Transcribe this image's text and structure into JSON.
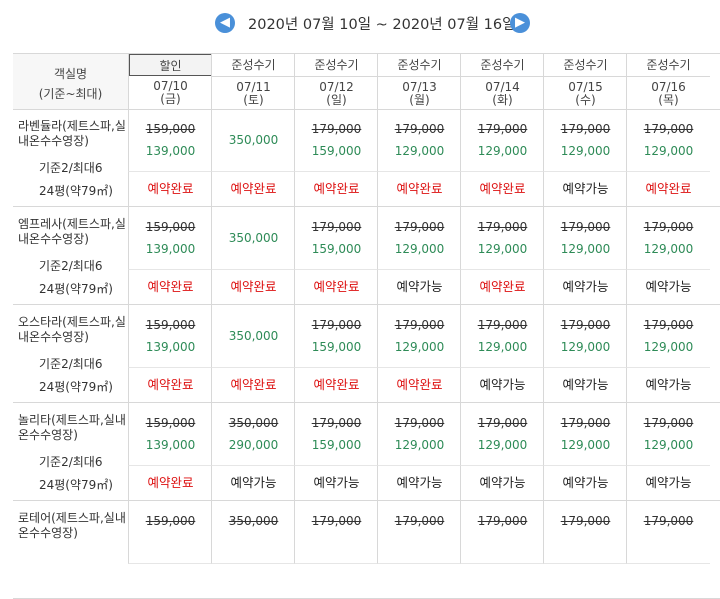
{
  "nav": {
    "range": "2020년 07월 10일 ~ 2020년 07월 16일",
    "prev_icon": "arrow-left-icon",
    "next_icon": "arrow-right-icon",
    "accent": "#4a90d9"
  },
  "header": {
    "room_col_line1": "객실명",
    "room_col_line2": "(기준~최대)",
    "days": [
      {
        "label": "할인",
        "date": "07/10",
        "dow": "(금)"
      },
      {
        "label": "준성수기",
        "date": "07/11",
        "dow": "(토)"
      },
      {
        "label": "준성수기",
        "date": "07/12",
        "dow": "(일)"
      },
      {
        "label": "준성수기",
        "date": "07/13",
        "dow": "(월)"
      },
      {
        "label": "준성수기",
        "date": "07/14",
        "dow": "(화)"
      },
      {
        "label": "준성수기",
        "date": "07/15",
        "dow": "(수)"
      },
      {
        "label": "준성수기",
        "date": "07/16",
        "dow": "(목)"
      }
    ]
  },
  "rooms": [
    {
      "name": "라벤듈라(제트스파,실내온수수영장)",
      "capacity": "기준2/최대6",
      "size": "24평(약79㎡)",
      "prices": [
        {
          "old": "159,000",
          "new": "139,000"
        },
        {
          "old": "",
          "new": "350,000"
        },
        {
          "old": "179,000",
          "new": "159,000"
        },
        {
          "old": "179,000",
          "new": "129,000"
        },
        {
          "old": "179,000",
          "new": "129,000"
        },
        {
          "old": "179,000",
          "new": "129,000"
        },
        {
          "old": "179,000",
          "new": "129,000"
        }
      ],
      "status": [
        "예약완료",
        "예약완료",
        "예약완료",
        "예약완료",
        "예약완료",
        "예약가능",
        "예약완료"
      ]
    },
    {
      "name": "엠프레사(제트스파,실내온수수영장)",
      "capacity": "기준2/최대6",
      "size": "24평(약79㎡)",
      "prices": [
        {
          "old": "159,000",
          "new": "139,000"
        },
        {
          "old": "",
          "new": "350,000"
        },
        {
          "old": "179,000",
          "new": "159,000"
        },
        {
          "old": "179,000",
          "new": "129,000"
        },
        {
          "old": "179,000",
          "new": "129,000"
        },
        {
          "old": "179,000",
          "new": "129,000"
        },
        {
          "old": "179,000",
          "new": "129,000"
        }
      ],
      "status": [
        "예약완료",
        "예약완료",
        "예약완료",
        "예약가능",
        "예약완료",
        "예약가능",
        "예약가능"
      ]
    },
    {
      "name": "오스타라(제트스파,실내온수수영장)",
      "capacity": "기준2/최대6",
      "size": "24평(약79㎡)",
      "prices": [
        {
          "old": "159,000",
          "new": "139,000"
        },
        {
          "old": "",
          "new": "350,000"
        },
        {
          "old": "179,000",
          "new": "159,000"
        },
        {
          "old": "179,000",
          "new": "129,000"
        },
        {
          "old": "179,000",
          "new": "129,000"
        },
        {
          "old": "179,000",
          "new": "129,000"
        },
        {
          "old": "179,000",
          "new": "129,000"
        }
      ],
      "status": [
        "예약완료",
        "예약완료",
        "예약완료",
        "예약완료",
        "예약가능",
        "예약가능",
        "예약가능"
      ]
    },
    {
      "name": "놀리타(제트스파,실내온수수영장)",
      "capacity": "기준2/최대6",
      "size": "24평(약79㎡)",
      "prices": [
        {
          "old": "159,000",
          "new": "139,000"
        },
        {
          "old": "350,000",
          "new": "290,000"
        },
        {
          "old": "179,000",
          "new": "159,000"
        },
        {
          "old": "179,000",
          "new": "129,000"
        },
        {
          "old": "179,000",
          "new": "129,000"
        },
        {
          "old": "179,000",
          "new": "129,000"
        },
        {
          "old": "179,000",
          "new": "129,000"
        }
      ],
      "status": [
        "예약완료",
        "예약가능",
        "예약가능",
        "예약가능",
        "예약가능",
        "예약가능",
        "예약가능"
      ]
    },
    {
      "name": "로테어(제트스파,실내온수수영장)",
      "capacity": "",
      "size": "",
      "prices": [
        {
          "old": "159,000",
          "new": ""
        },
        {
          "old": "350,000",
          "new": ""
        },
        {
          "old": "179,000",
          "new": ""
        },
        {
          "old": "179,000",
          "new": ""
        },
        {
          "old": "179,000",
          "new": ""
        },
        {
          "old": "179,000",
          "new": ""
        },
        {
          "old": "179,000",
          "new": ""
        }
      ],
      "status": []
    }
  ]
}
